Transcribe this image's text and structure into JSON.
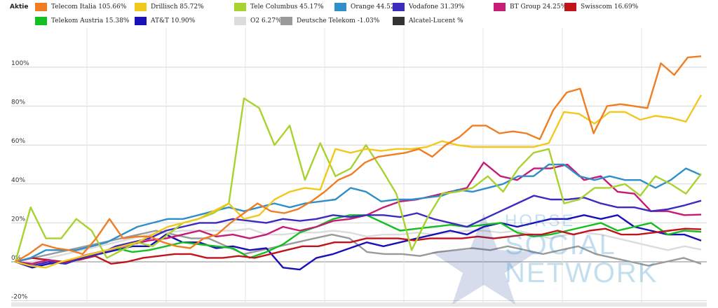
{
  "legend": {
    "heading": "Aktie"
  },
  "chart_data": {
    "type": "line",
    "ylim": [
      -20,
      115
    ],
    "yticks": [
      -20,
      0,
      20,
      40,
      60,
      80,
      100
    ],
    "ytick_labels": [
      "-20%",
      "0%",
      "20%",
      "40%",
      "60%",
      "80%",
      "100%"
    ],
    "grid": true,
    "legend_position": "top",
    "n_points": 45,
    "series": [
      {
        "name": "Telecom Italia",
        "display_value": "105.66%",
        "color": "#f07d22",
        "values": [
          0,
          4,
          9,
          7,
          6,
          4,
          12,
          22,
          12,
          13,
          13,
          10,
          8,
          7,
          12,
          14,
          20,
          25,
          30,
          26,
          25,
          27,
          31,
          36,
          42,
          45,
          51,
          54,
          55,
          56,
          58,
          54,
          60,
          64,
          70,
          70,
          66,
          67,
          66,
          63,
          78,
          87,
          89,
          66,
          80,
          81,
          80,
          79,
          102,
          96,
          105,
          105.66
        ]
      },
      {
        "name": "Drillisch",
        "display_value": "85.72%",
        "color": "#f2c81d",
        "values": [
          0,
          -2,
          -3,
          0,
          2,
          4,
          6,
          8,
          10,
          14,
          18,
          20,
          22,
          26,
          30,
          22,
          24,
          32,
          36,
          38,
          37,
          58,
          56,
          58,
          57,
          58,
          58,
          59,
          62,
          60,
          59,
          59,
          59,
          59,
          59,
          61,
          77,
          76,
          71,
          77,
          77,
          73,
          75,
          74,
          72,
          85.72
        ]
      },
      {
        "name": "Tele Columbus",
        "display_value": "45.17%",
        "color": "#a8d22e",
        "values": [
          0,
          28,
          12,
          12,
          22,
          16,
          2,
          6,
          10,
          8,
          14,
          20,
          22,
          25,
          30,
          84,
          79,
          60,
          70,
          42,
          61,
          44,
          48,
          60,
          48,
          35,
          6,
          22,
          35,
          36,
          38,
          44,
          36,
          48,
          56,
          58,
          30,
          32,
          38,
          38,
          40,
          34,
          44,
          40,
          35,
          45.17
        ]
      },
      {
        "name": "Orange",
        "display_value": "44.52%",
        "color": "#2f8fc8",
        "values": [
          0,
          2,
          6,
          6,
          6,
          8,
          10,
          14,
          18,
          20,
          22,
          22,
          24,
          26,
          28,
          26,
          28,
          30,
          28,
          30,
          31,
          32,
          38,
          36,
          31,
          32,
          32,
          33,
          34,
          37,
          36,
          38,
          40,
          44,
          44,
          50,
          50,
          44,
          42,
          44,
          42,
          42,
          38,
          42,
          48,
          44.52
        ]
      },
      {
        "name": "Vodafone",
        "display_value": "31.39%",
        "color": "#3b2bbf",
        "values": [
          0,
          -2,
          0,
          -1,
          2,
          4,
          8,
          10,
          12,
          16,
          18,
          20,
          20,
          22,
          21,
          20,
          22,
          21,
          22,
          24,
          23,
          24,
          24,
          23,
          25,
          22,
          20,
          18,
          22,
          26,
          30,
          34,
          32,
          32,
          33,
          30,
          28,
          28,
          26,
          27,
          29,
          31.39
        ]
      },
      {
        "name": "BT Group",
        "display_value": "24.25%",
        "color": "#c61c76",
        "values": [
          0,
          -1,
          1,
          -1,
          3,
          5,
          7,
          9,
          11,
          12,
          14,
          16,
          13,
          14,
          12,
          14,
          18,
          16,
          18,
          21,
          22,
          24,
          28,
          31,
          32,
          34,
          36,
          38,
          51,
          44,
          42,
          48,
          48,
          50,
          42,
          44,
          36,
          35,
          26,
          26,
          24,
          24.25
        ]
      },
      {
        "name": "Swisscom",
        "display_value": "16.69%",
        "color": "#c0141c",
        "values": [
          0,
          2,
          1,
          0,
          1,
          3,
          -1,
          0,
          2,
          3,
          4,
          4,
          2,
          2,
          3,
          2,
          4,
          6,
          8,
          8,
          10,
          10,
          12,
          12,
          12,
          11,
          12,
          12,
          12,
          13,
          12,
          13,
          14,
          14,
          16,
          14,
          16,
          17,
          14,
          14,
          15,
          16,
          17,
          16.69
        ]
      },
      {
        "name": "Telekom Austria",
        "display_value": "15.38%",
        "color": "#13c020",
        "values": [
          0,
          -2,
          0,
          -1,
          2,
          5,
          7,
          5,
          6,
          8,
          10,
          9,
          8,
          7,
          2,
          5,
          9,
          15,
          18,
          22,
          24,
          24,
          20,
          16,
          17,
          18,
          19,
          18,
          19,
          20,
          15,
          13,
          14,
          16,
          18,
          20,
          16,
          18,
          20,
          14,
          16,
          15.38
        ]
      },
      {
        "name": "AT&T",
        "display_value": "10.90%",
        "color": "#1a10b8",
        "values": [
          0,
          -3,
          -1,
          0,
          2,
          4,
          6,
          8,
          8,
          14,
          10,
          10,
          7,
          8,
          6,
          7,
          -3,
          -4,
          2,
          4,
          7,
          10,
          8,
          10,
          12,
          14,
          16,
          14,
          18,
          20,
          18,
          20,
          22,
          22,
          24,
          22,
          24,
          18,
          16,
          14,
          14,
          10.9
        ]
      },
      {
        "name": "O2",
        "display_value": "6.27%",
        "color": "#dcdcdc",
        "values": [
          0,
          0,
          2,
          4,
          6,
          8,
          10,
          12,
          14,
          15,
          16,
          16,
          16,
          16,
          17,
          14,
          14,
          15,
          15,
          16,
          15,
          13,
          14,
          14,
          15,
          14,
          15,
          16,
          16,
          15,
          16,
          14,
          12,
          14,
          15,
          14,
          12,
          10,
          8,
          6,
          8,
          6.27
        ]
      },
      {
        "name": "Deutsche Telekom",
        "display_value": "-1.03%",
        "color": "#9a9a9a",
        "values": [
          0,
          2,
          4,
          6,
          8,
          10,
          12,
          14,
          16,
          14,
          12,
          12,
          8,
          4,
          6,
          8,
          10,
          12,
          14,
          12,
          5,
          4,
          4,
          3,
          5,
          6,
          7,
          6,
          8,
          6,
          4,
          6,
          8,
          4,
          2,
          0,
          -2,
          0,
          2,
          -1.03
        ]
      },
      {
        "name": "Alcatel-Lucent",
        "display_value": "",
        "color": "#333333",
        "values": []
      }
    ]
  },
  "watermark": {
    "line1": "HORSE",
    "line2": "SOCIAL",
    "line3": "NETWORK"
  }
}
